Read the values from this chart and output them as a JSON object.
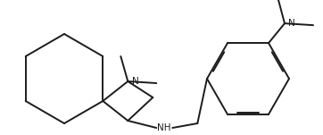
{
  "bg": "#ffffff",
  "lc": "#1c1c1c",
  "lw": 1.4,
  "fw": 3.62,
  "fh": 1.51,
  "dpi": 100,
  "fs": 7.0,
  "xlim": [
    0,
    362
  ],
  "ylim": [
    0,
    151
  ]
}
